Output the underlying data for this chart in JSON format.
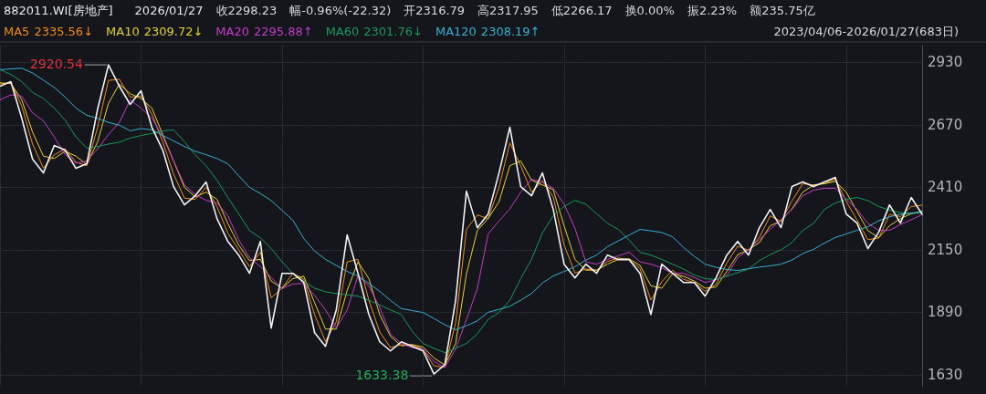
{
  "chart_data": {
    "type": "line",
    "title": "882011.WI[房地产]",
    "categories": [
      null,
      null,
      null,
      null,
      null,
      null,
      null,
      null,
      null,
      null,
      null,
      null,
      null,
      null,
      null,
      null,
      null,
      null,
      null,
      null,
      null,
      null,
      null,
      null,
      null,
      null,
      null,
      null,
      null,
      null,
      null,
      null,
      null,
      null,
      null,
      null,
      null,
      null,
      null,
      null,
      null,
      null,
      null,
      null,
      null,
      null,
      null,
      null,
      null,
      null,
      null,
      null,
      null,
      null,
      null,
      null,
      null,
      null,
      null,
      null,
      null,
      null,
      null,
      null,
      null,
      null,
      null,
      null,
      null,
      null,
      null,
      null,
      null,
      null,
      null,
      null,
      null,
      null,
      null,
      null,
      null,
      null,
      null,
      null,
      null,
      null
    ],
    "series": [
      {
        "color": "#f2f2f2",
        "values": [
          2831,
          2850,
          2698,
          2527,
          2470,
          2584,
          2565,
          2489,
          2508,
          2736,
          2920,
          2831,
          2755,
          2812,
          2660,
          2565,
          2413,
          2337,
          2375,
          2432,
          2280,
          2185,
          2128,
          2052,
          2185,
          1824,
          2052,
          2052,
          2014,
          1805,
          1748,
          1900,
          2212,
          2052,
          1881,
          1767,
          1729,
          1767,
          1748,
          1729,
          1633,
          1672,
          1938,
          2394,
          2242,
          2299,
          2470,
          2660,
          2413,
          2375,
          2470,
          2318,
          2090,
          2033,
          2090,
          2052,
          2128,
          2109,
          2109,
          2052,
          1881,
          2090,
          2052,
          2014,
          2014,
          1957,
          2033,
          2128,
          2185,
          2128,
          2242,
          2318,
          2242,
          2413,
          2432,
          2413,
          2432,
          2451,
          2299,
          2261,
          2155,
          2223,
          2337,
          2261,
          2368,
          2298
        ]
      },
      {
        "name": "MA5",
        "color": "#f28a1e",
        "values": [
          2840,
          2845,
          2750,
          2590,
          2490,
          2545,
          2570,
          2515,
          2500,
          2660,
          2855,
          2860,
          2785,
          2790,
          2715,
          2600,
          2465,
          2365,
          2360,
          2410,
          2330,
          2220,
          2150,
          2080,
          2140,
          1950,
          1990,
          2052,
          2028,
          1880,
          1768,
          1850,
          2100,
          2110,
          1940,
          1808,
          1743,
          1754,
          1755,
          1736,
          1667,
          1660,
          1845,
          2235,
          2295,
          2280,
          2410,
          2595,
          2500,
          2390,
          2437,
          2370,
          2170,
          2053,
          2070,
          2065,
          2101,
          2116,
          2109,
          2072,
          1941,
          2017,
          2065,
          2027,
          2014,
          1977,
          2006,
          2095,
          2165,
          2148,
          2202,
          2291,
          2268,
          2353,
          2425,
          2420,
          2426,
          2444,
          2352,
          2274,
          2192,
          2199,
          2297,
          2288,
          2330,
          2336
        ]
      },
      {
        "name": "MA10",
        "color": "#e6cf3c",
        "values": [
          2845,
          2842,
          2775,
          2640,
          2540,
          2530,
          2560,
          2540,
          2505,
          2600,
          2760,
          2840,
          2800,
          2780,
          2740,
          2630,
          2520,
          2410,
          2370,
          2390,
          2360,
          2260,
          2170,
          2105,
          2110,
          2020,
          1990,
          2030,
          2040,
          1930,
          1820,
          1820,
          1980,
          2100,
          2030,
          1880,
          1790,
          1750,
          1755,
          1745,
          1700,
          1670,
          1760,
          2050,
          2230,
          2280,
          2350,
          2500,
          2520,
          2440,
          2420,
          2400,
          2250,
          2110,
          2065,
          2065,
          2090,
          2110,
          2112,
          2085,
          2000,
          1990,
          2050,
          2040,
          2020,
          1990,
          1995,
          2060,
          2130,
          2150,
          2180,
          2250,
          2270,
          2320,
          2390,
          2420,
          2425,
          2435,
          2390,
          2310,
          2230,
          2200,
          2250,
          2280,
          2300,
          2310
        ]
      },
      {
        "name": "MA20",
        "color": "#c43cc4",
        "values": [
          2774,
          2795,
          2790,
          2720,
          2687,
          2620,
          2546,
          2510,
          2520,
          2570,
          2630,
          2680,
          2774,
          2740,
          2698,
          2622,
          2520,
          2420,
          2380,
          2356,
          2345,
          2292,
          2193,
          2117,
          2080,
          2035,
          1988,
          2008,
          2010,
          1960,
          1900,
          1824,
          1900,
          2041,
          2000,
          1910,
          1798,
          1760,
          1742,
          1737,
          1685,
          1660,
          1737,
          1860,
          1988,
          2216,
          2270,
          2320,
          2390,
          2444,
          2432,
          2406,
          2340,
          2240,
          2100,
          2090,
          2110,
          2125,
          2140,
          2100,
          2090,
          2075,
          2052,
          2052,
          2035,
          2014,
          2025,
          2041,
          2117,
          2150,
          2193,
          2235,
          2275,
          2318,
          2375,
          2398,
          2406,
          2406,
          2360,
          2318,
          2260,
          2231,
          2231,
          2255,
          2275,
          2296
        ]
      },
      {
        "name": "MA60",
        "color": "#1a9a5c",
        "values": [
          2900,
          2880,
          2850,
          2805,
          2780,
          2740,
          2690,
          2620,
          2573,
          2580,
          2590,
          2598,
          2615,
          2626,
          2634,
          2645,
          2649,
          2600,
          2545,
          2500,
          2440,
          2368,
          2300,
          2230,
          2200,
          2155,
          2100,
          2050,
          2020,
          1990,
          1975,
          1968,
          1962,
          1957,
          1940,
          1920,
          1900,
          1880,
          1810,
          1760,
          1740,
          1722,
          1740,
          1760,
          1800,
          1860,
          1889,
          1940,
          2030,
          2110,
          2220,
          2292,
          2330,
          2356,
          2340,
          2300,
          2260,
          2235,
          2190,
          2140,
          2128,
          2110,
          2090,
          2070,
          2045,
          2030,
          2026,
          2040,
          2055,
          2070,
          2105,
          2130,
          2150,
          2180,
          2230,
          2260,
          2318,
          2345,
          2360,
          2368,
          2355,
          2330,
          2315,
          2305,
          2302,
          2302
        ]
      },
      {
        "name": "MA120",
        "color": "#3ab0cc",
        "values": [
          2900,
          2903,
          2906,
          2886,
          2856,
          2826,
          2786,
          2740,
          2710,
          2697,
          2680,
          2669,
          2645,
          2655,
          2649,
          2626,
          2603,
          2580,
          2560,
          2546,
          2530,
          2508,
          2459,
          2410,
          2384,
          2355,
          2314,
          2273,
          2197,
          2145,
          2110,
          2085,
          2060,
          2041,
          2010,
          1977,
          1939,
          1905,
          1897,
          1889,
          1864,
          1838,
          1817,
          1834,
          1854,
          1890,
          1902,
          1915,
          1940,
          1968,
          2012,
          2041,
          2060,
          2079,
          2107,
          2128,
          2163,
          2187,
          2211,
          2235,
          2229,
          2222,
          2204,
          2160,
          2123,
          2090,
          2077,
          2068,
          2064,
          2071,
          2078,
          2083,
          2090,
          2107,
          2134,
          2152,
          2178,
          2201,
          2216,
          2231,
          2246,
          2271,
          2287,
          2298,
          2303,
          2308
        ]
      }
    ],
    "annotations": [
      "2026/01/27",
      "收2298.23",
      "幅-0.96%(-22.32)",
      "开2316.79",
      "高2317.95",
      "低2266.17",
      "换0.00%",
      "振2.23%",
      "额235.75亿",
      "2335.56↓",
      "2309.72↓",
      "2295.88↑",
      "2301.76↓",
      "2308.19↑",
      "2023/04/06-2026/01/27(683日)",
      "2920.54",
      "1633.38"
    ],
    "ylim": [
      1580,
      3000
    ],
    "yticks": [
      1630,
      1890,
      2150,
      2410,
      2670,
      2930
    ],
    "tick_labels": "y",
    "grid": true,
    "legend": "top left",
    "marker": "none",
    "line_style": "solid"
  }
}
